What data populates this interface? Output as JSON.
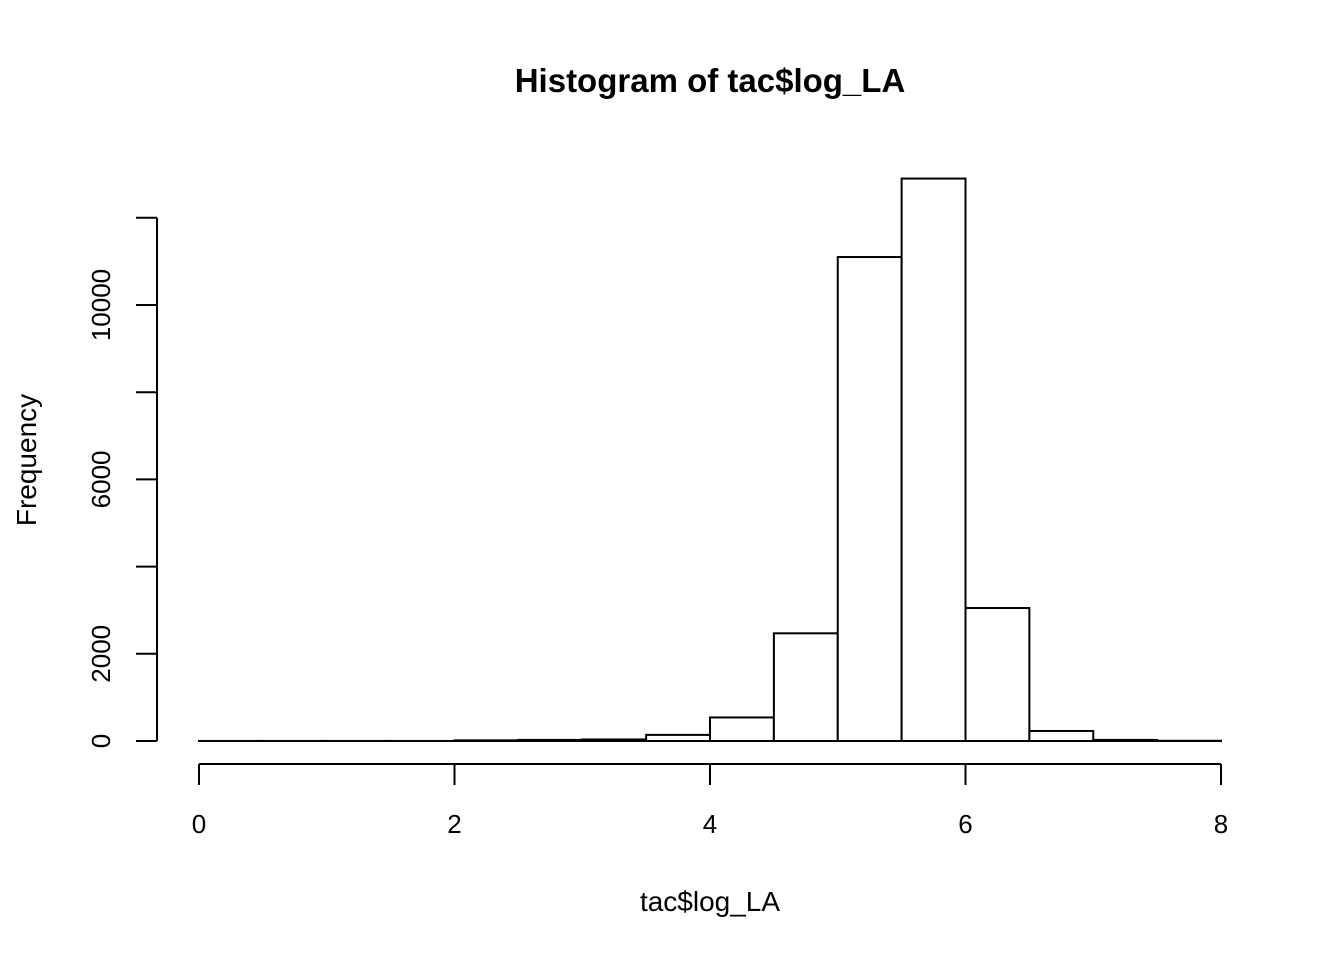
{
  "chart_data": {
    "type": "bar",
    "subtype": "histogram",
    "title": "Histogram of tac$log_LA",
    "xlabel": "tac$log_LA",
    "ylabel": "Frequency",
    "xlim": [
      0,
      8
    ],
    "ylim": [
      0,
      12900
    ],
    "x_ticks": [
      0,
      2,
      4,
      6,
      8
    ],
    "y_ticks": [
      0,
      2000,
      4000,
      6000,
      8000,
      10000,
      12000
    ],
    "y_tick_labels": [
      "0",
      "2000",
      "",
      "6000",
      "",
      "10000",
      ""
    ],
    "bin_edges": [
      0,
      0.5,
      1,
      1.5,
      2,
      2.5,
      3,
      3.5,
      4,
      4.5,
      5,
      5.5,
      6,
      6.5,
      7,
      7.5,
      8
    ],
    "values": [
      1,
      1,
      1,
      1,
      15,
      25,
      35,
      140,
      540,
      2470,
      11100,
      12900,
      3050,
      230,
      25,
      5
    ],
    "grid": false,
    "bar_fill": "#ffffff",
    "bar_stroke": "#000000"
  }
}
